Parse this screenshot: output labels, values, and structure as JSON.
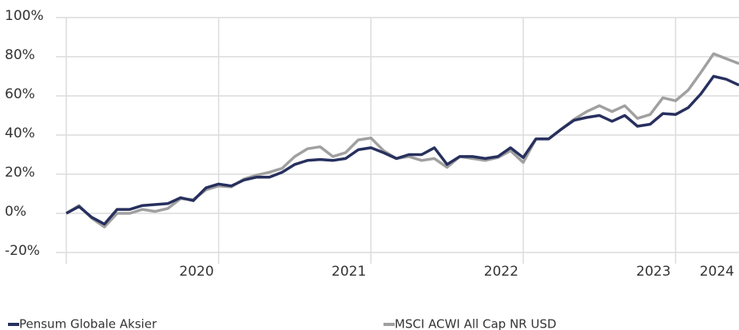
{
  "chart_data": {
    "type": "line",
    "x": [
      0,
      1,
      2,
      3,
      4,
      5,
      6,
      7,
      8,
      9,
      10,
      11,
      12,
      13,
      14,
      15,
      16,
      17,
      18,
      19,
      20,
      21,
      22,
      23,
      24,
      25,
      26,
      27,
      28,
      29,
      30,
      31,
      32,
      33,
      34,
      35,
      36,
      37,
      38,
      39,
      40,
      41,
      42,
      43,
      44,
      45,
      46,
      47,
      48,
      49,
      50,
      51,
      52,
      53
    ],
    "series": [
      {
        "name": "Pensum Globale Aksier",
        "color": "#27305e",
        "values": [
          0,
          3.5,
          -2,
          -5.5,
          2,
          2,
          4,
          4.5,
          5,
          8,
          6.5,
          13,
          15,
          14,
          17,
          18.5,
          18.5,
          21,
          25,
          27,
          27.5,
          27,
          28,
          32.5,
          33.5,
          31,
          28,
          30,
          30,
          33.5,
          25,
          29,
          29,
          28,
          29,
          33.5,
          28.5,
          38,
          38,
          43,
          47.5,
          49,
          50,
          47,
          50,
          44.5,
          45.5,
          51,
          50.5,
          54,
          61,
          70,
          68.5,
          65.5
        ]
      },
      {
        "name": "MSCI ACWI All Cap NR USD",
        "color": "#a0a0a0",
        "values": [
          0,
          4,
          -2.5,
          -7,
          0,
          0,
          2,
          1,
          2.5,
          7.5,
          7,
          12,
          14,
          13.5,
          17.5,
          19.5,
          21,
          23,
          29,
          33,
          34,
          29,
          31,
          37.5,
          38.5,
          32,
          28,
          29,
          27,
          28,
          23.5,
          29,
          28,
          27,
          28.5,
          32,
          26,
          38,
          38,
          43,
          48,
          52,
          55,
          52,
          55,
          48.5,
          50.5,
          59,
          57.5,
          63,
          72,
          81.5,
          79,
          76.5
        ]
      }
    ],
    "xlim": [
      0,
      53
    ],
    "xticks": [
      {
        "value": 12,
        "label": "2020"
      },
      {
        "value": 24,
        "label": "2021"
      },
      {
        "value": 36,
        "label": "2022"
      },
      {
        "value": 48,
        "label": "2023"
      },
      {
        "value": 53,
        "label": "2024"
      }
    ],
    "ylim": [
      -20,
      100
    ],
    "yticks": [
      {
        "value": -20,
        "label": "-20%"
      },
      {
        "value": 0,
        "label": "0%"
      },
      {
        "value": 20,
        "label": "20%"
      },
      {
        "value": 40,
        "label": "40%"
      },
      {
        "value": 60,
        "label": "60%"
      },
      {
        "value": 80,
        "label": "80%"
      },
      {
        "value": 100,
        "label": "100%"
      }
    ],
    "grid": true,
    "legend": "bottom"
  }
}
